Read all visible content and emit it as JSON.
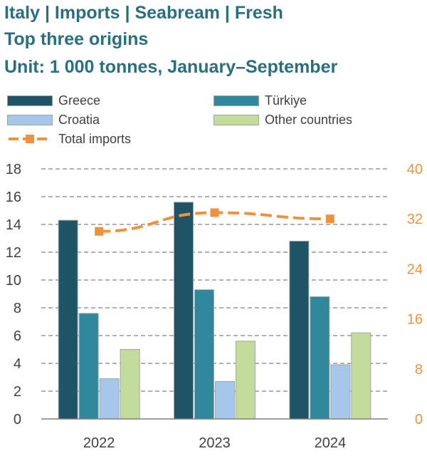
{
  "header": {
    "line1": "Italy | Imports | Seabream | Fresh",
    "line2": "Top three origins",
    "line3": "Unit: 1 000 tonnes, January–September"
  },
  "colors": {
    "title": "#2a6f80",
    "greece": "#1f5366",
    "turkiye": "#2f889c",
    "croatia": "#a6c7ea",
    "other": "#c3dc9a",
    "total": "#f0913c",
    "axis_left": "#404040",
    "axis_right": "#f0913c",
    "grid": "#808080"
  },
  "chart_data": {
    "type": "bar",
    "categories": [
      "2022",
      "2023",
      "2024"
    ],
    "series": [
      {
        "name": "Greece",
        "values": [
          14.3,
          15.6,
          12.8
        ],
        "color": "#1f5366",
        "axis": "left"
      },
      {
        "name": "Türkiye",
        "values": [
          7.6,
          9.3,
          8.8
        ],
        "color": "#2f889c",
        "axis": "left"
      },
      {
        "name": "Croatia",
        "values": [
          2.9,
          2.7,
          3.9
        ],
        "color": "#a6c7ea",
        "axis": "left"
      },
      {
        "name": "Other countries",
        "values": [
          5.0,
          5.6,
          6.2
        ],
        "color": "#c3dc9a",
        "axis": "left"
      },
      {
        "name": "Total imports",
        "type": "line",
        "values": [
          30.0,
          33.0,
          32.0
        ],
        "color": "#f0913c",
        "axis": "right",
        "style": "dashed"
      }
    ],
    "y_left": {
      "min": 0,
      "max": 18,
      "ticks": [
        "0",
        "2",
        "4",
        "6",
        "8",
        "10",
        "12",
        "14",
        "16",
        "18"
      ]
    },
    "y_right": {
      "min": 0,
      "max": 40,
      "ticks": [
        "0",
        "8",
        "16",
        "24",
        "32",
        "40"
      ]
    },
    "grid": true,
    "legend": "top"
  }
}
